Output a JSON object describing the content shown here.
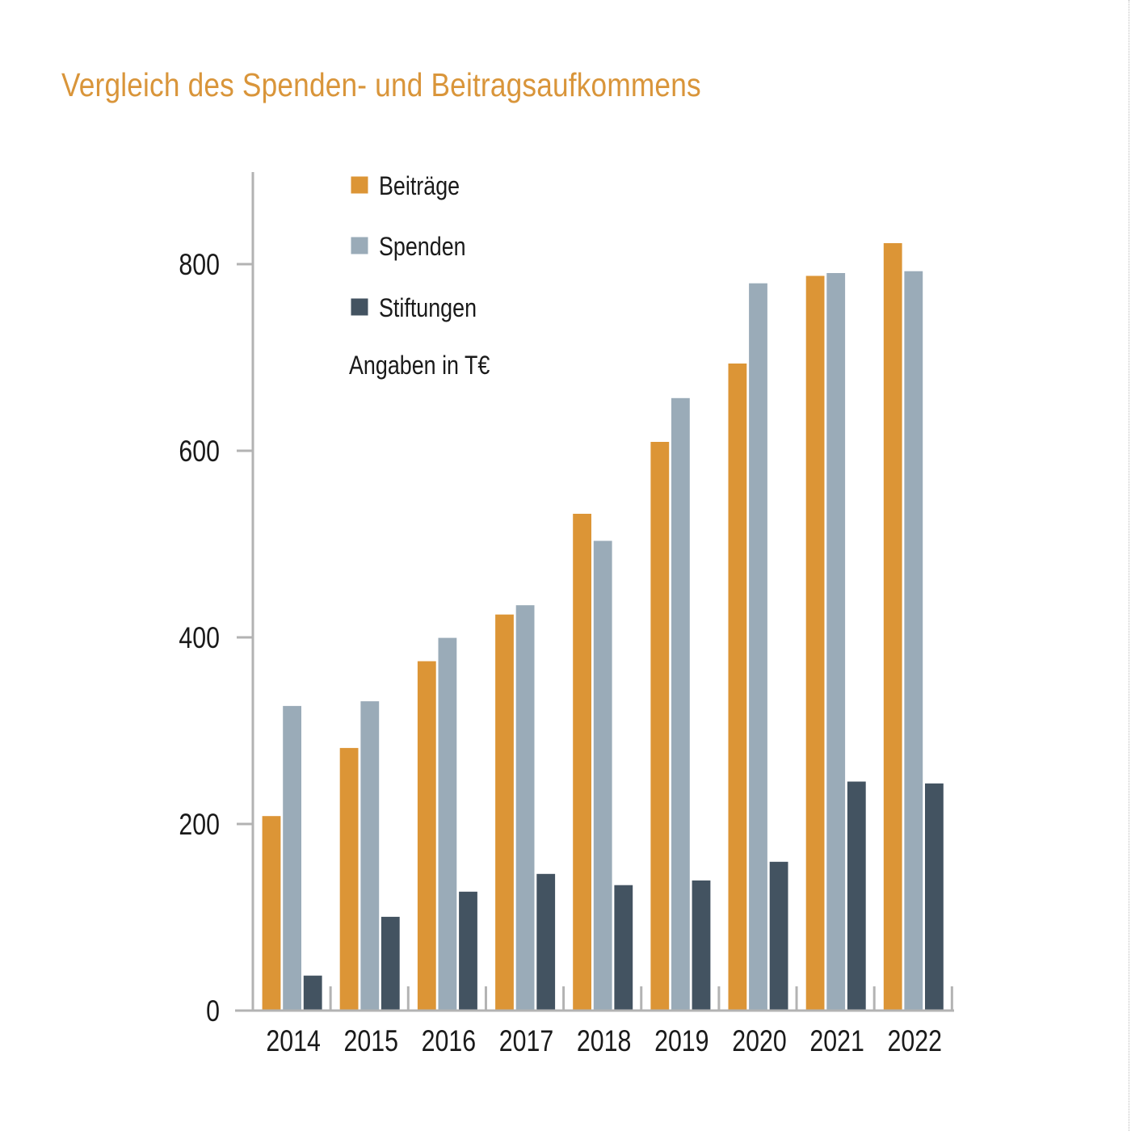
{
  "title": "Vergleich des Spenden- und Beitragsaufkommens",
  "note": "Angaben in T€",
  "colors": {
    "title": "#d9953a",
    "axis": "#b3b3b3",
    "text": "#1a1a1a"
  },
  "chart_data": {
    "type": "bar",
    "title": "Vergleich des Spenden- und Beitragsaufkommens",
    "xlabel": "",
    "ylabel": "",
    "unit_note": "Angaben in T€",
    "categories": [
      "2014",
      "2015",
      "2016",
      "2017",
      "2018",
      "2019",
      "2020",
      "2021",
      "2022"
    ],
    "series": [
      {
        "name": "Beiträge",
        "color": "#dc9536",
        "values": [
          209,
          282,
          375,
          425,
          533,
          610,
          694,
          788,
          823
        ]
      },
      {
        "name": "Spenden",
        "color": "#9aabb8",
        "values": [
          327,
          332,
          400,
          435,
          504,
          657,
          780,
          791,
          793
        ]
      },
      {
        "name": "Stiftungen",
        "color": "#435361",
        "values": [
          38,
          101,
          128,
          147,
          135,
          140,
          160,
          246,
          244
        ]
      }
    ],
    "y_ticks": [
      0,
      200,
      400,
      600,
      800
    ],
    "ylim": [
      0,
      900
    ],
    "grid": false,
    "legend_position": "top-left inside plot"
  }
}
